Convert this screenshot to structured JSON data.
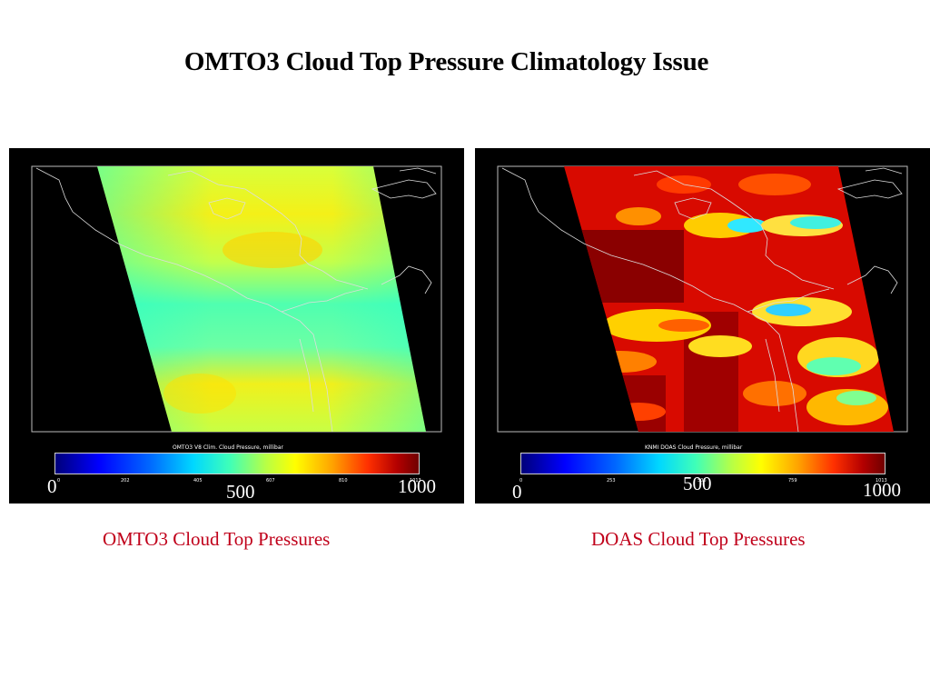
{
  "title": "OMTO3 Cloud Top Pressure Climatology Issue",
  "panels": [
    {
      "colorbar_title": "OMTO3 V8 Clim. Cloud Pressure, millibar",
      "ticks": [
        "0",
        "202",
        "405",
        "607",
        "810",
        "1013"
      ],
      "labels": [
        "0",
        "500",
        "1000"
      ],
      "caption": "OMTO3 Cloud Top Pressures"
    },
    {
      "colorbar_title": "KNMI DOAS Cloud Pressure, millibar",
      "ticks": [
        "0",
        "253",
        "506",
        "759",
        "1013"
      ],
      "labels": [
        "0",
        "500",
        "1000"
      ],
      "caption": "DOAS Cloud Top Pressures"
    }
  ]
}
